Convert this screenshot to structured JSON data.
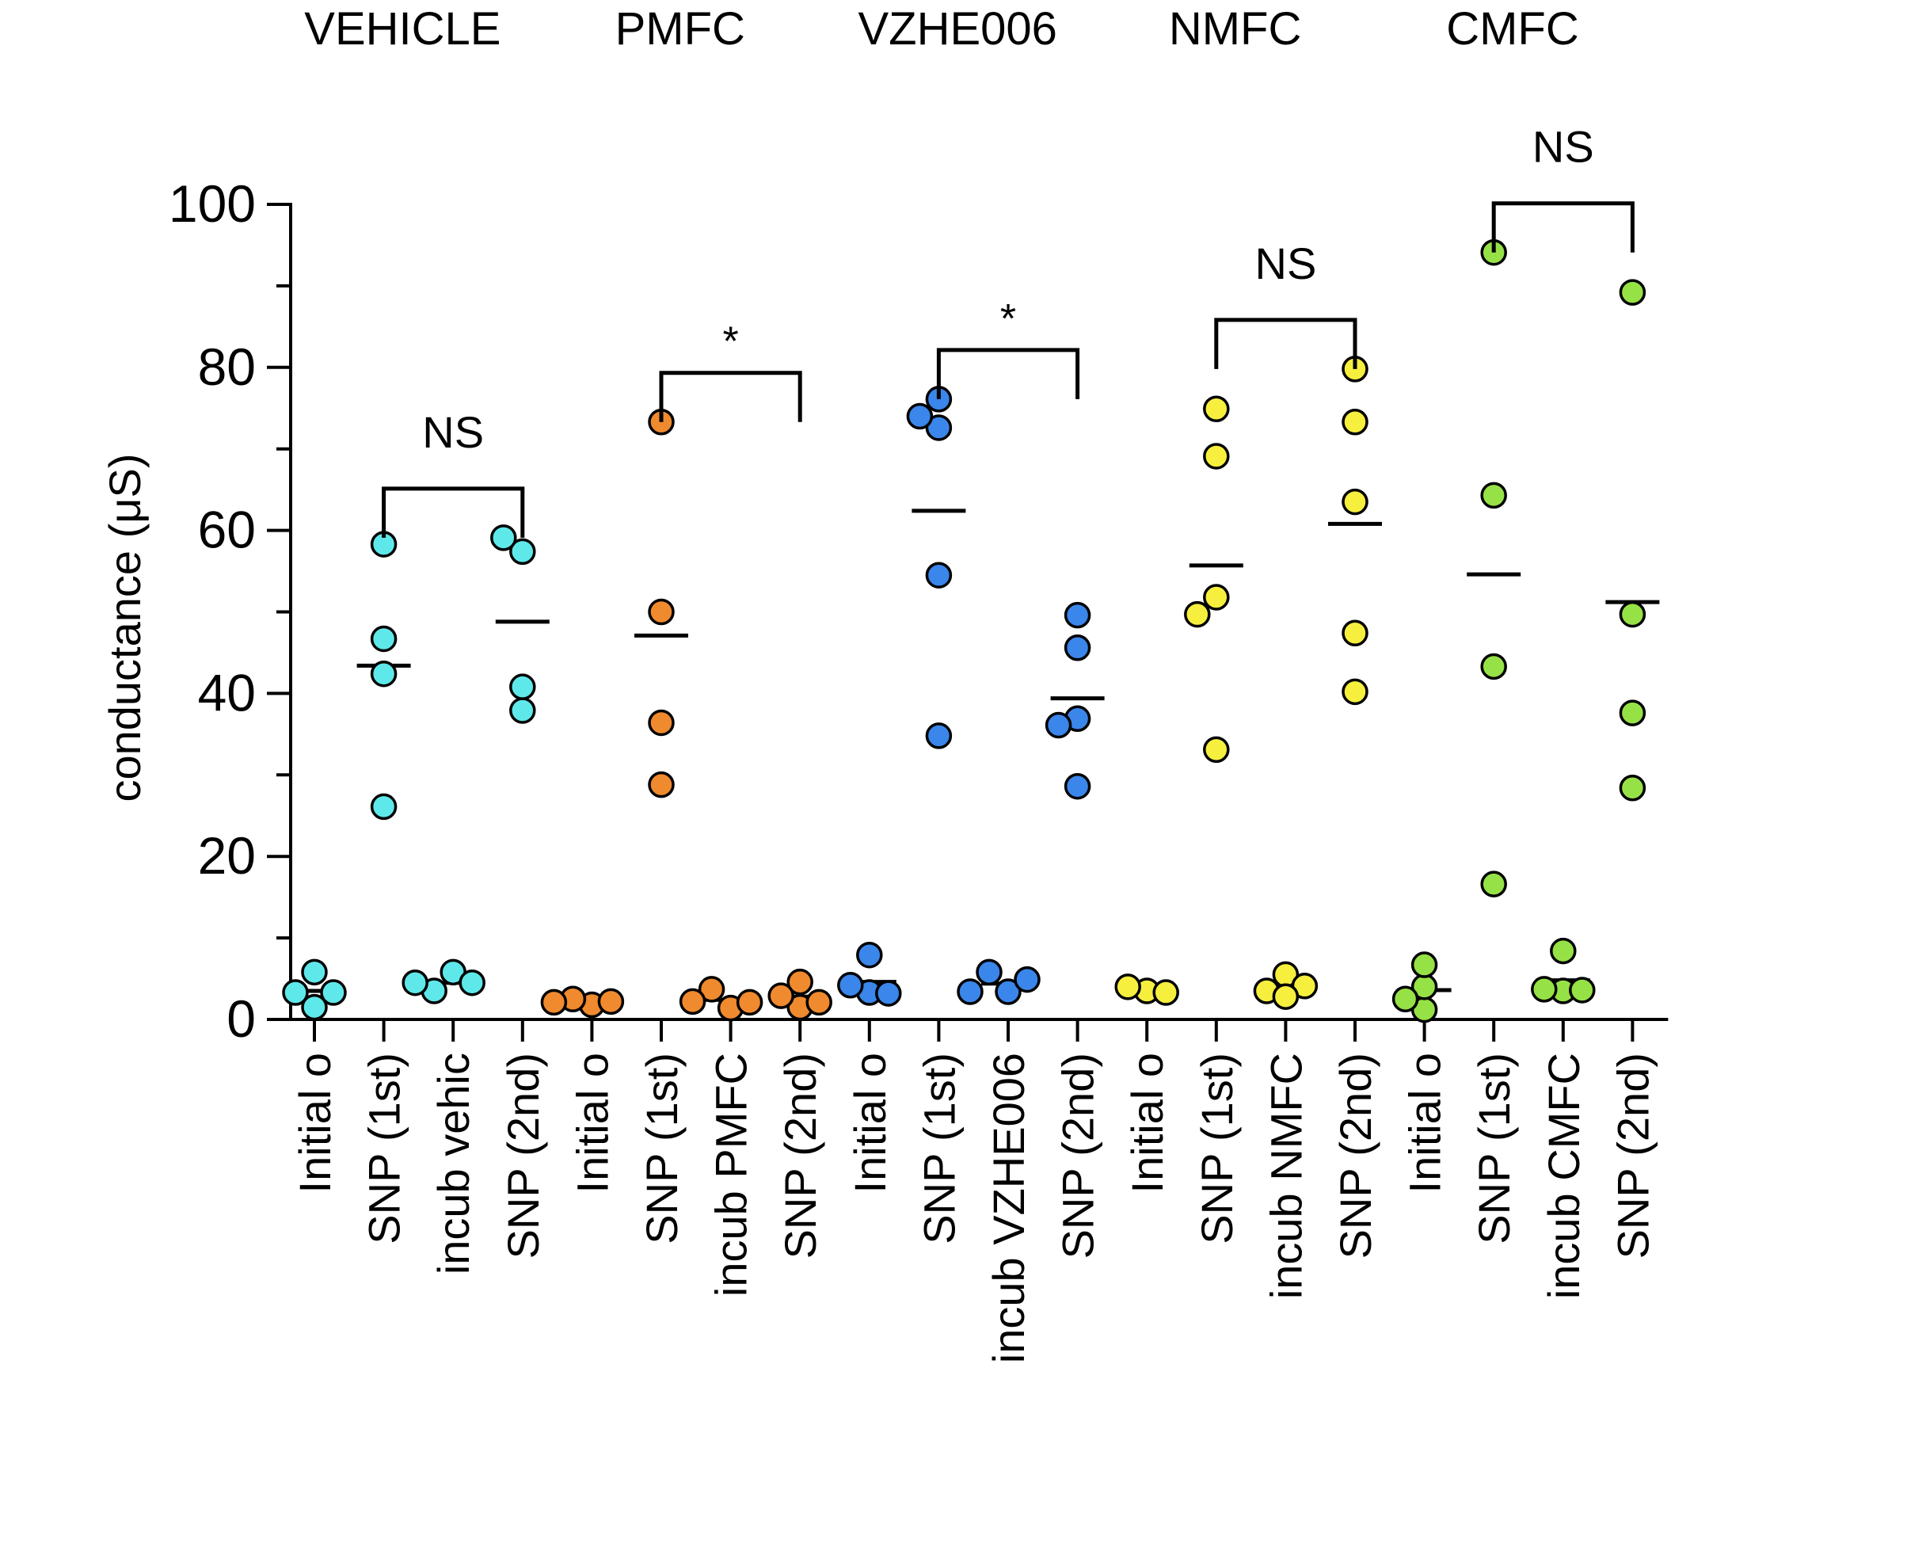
{
  "chart_data": {
    "type": "scatter",
    "subtype": "dot-plot with mean lines and significance brackets",
    "ylabel": "conductance (μS)",
    "ylim": [
      0,
      100
    ],
    "yticks": [
      0,
      20,
      40,
      60,
      80,
      100
    ],
    "grid": false,
    "groups": [
      {
        "name": "VEHICLE",
        "color": "#5fe8ea",
        "significance": "NS",
        "categories": [
          {
            "label": "Initial o",
            "values": [
              5.8,
              1.5,
              3.3,
              3.3
            ],
            "mean": 3.5
          },
          {
            "label": "SNP (1st)",
            "values": [
              58.3,
              46.7,
              42.4,
              26.1
            ],
            "mean": 43.4
          },
          {
            "label": "incub vehic",
            "values": [
              5.8,
              3.5,
              4.5,
              4.5
            ],
            "mean": 4.5
          },
          {
            "label": "SNP (2nd)",
            "values": [
              57.4,
              59.1,
              37.9,
              40.8
            ],
            "mean": 48.8
          }
        ]
      },
      {
        "name": "PMFC",
        "color": "#f08a2e",
        "significance": "*",
        "categories": [
          {
            "label": "Initial o",
            "values": [
              1.8,
              2.5,
              2.2,
              2.1
            ],
            "mean": 2.2
          },
          {
            "label": "SNP (1st)",
            "values": [
              73.3,
              50.0,
              36.4,
              28.8
            ],
            "mean": 47.1
          },
          {
            "label": "incub PMFC",
            "values": [
              1.4,
              3.7,
              2.1,
              2.2
            ],
            "mean": 2.4
          },
          {
            "label": "SNP (2nd)",
            "values": [
              1.5,
              4.6,
              2.9,
              2.1
            ],
            "mean": 2.8
          }
        ]
      },
      {
        "name": "VZHE006",
        "color": "#3a86ea",
        "significance": "*",
        "categories": [
          {
            "label": "Initial o",
            "values": [
              3.3,
              4.2,
              7.9,
              3.2
            ],
            "mean": 4.6
          },
          {
            "label": "SNP (1st)",
            "values": [
              76.1,
              72.6,
              74.0,
              54.5,
              34.8
            ],
            "mean": 62.4
          },
          {
            "label": "incub VZHE006",
            "values": [
              3.4,
              5.8,
              4.9,
              3.4
            ],
            "mean": 4.4
          },
          {
            "label": "SNP (2nd)",
            "values": [
              49.6,
              45.6,
              36.9,
              36.1,
              28.6
            ],
            "mean": 39.4
          }
        ]
      },
      {
        "name": "NMFC",
        "color": "#f6ef3e",
        "significance": "NS",
        "categories": [
          {
            "label": "Initial o",
            "values": [
              3.5,
              4.0,
              3.3
            ],
            "mean": 3.6
          },
          {
            "label": "SNP (1st)",
            "values": [
              74.9,
              69.1,
              51.8,
              49.7,
              33.1
            ],
            "mean": 55.7
          },
          {
            "label": "incub NMFC",
            "values": [
              5.5,
              3.5,
              4.1,
              2.8
            ],
            "mean": 4.0
          },
          {
            "label": "SNP (2nd)",
            "values": [
              79.8,
              73.3,
              63.5,
              47.4,
              40.2
            ],
            "mean": 60.8
          }
        ]
      },
      {
        "name": "CMFC",
        "color": "#96e246",
        "significance": "NS",
        "categories": [
          {
            "label": "Initial o",
            "values": [
              1.2,
              4.0,
              6.7,
              2.5
            ],
            "mean": 3.6
          },
          {
            "label": "SNP (1st)",
            "values": [
              94.1,
              64.3,
              43.3,
              16.6
            ],
            "mean": 54.6
          },
          {
            "label": "incub CMFC",
            "values": [
              8.4,
              3.5,
              3.7,
              3.6
            ],
            "mean": 4.8
          },
          {
            "label": "SNP (2nd)",
            "values": [
              89.2,
              49.7,
              37.6,
              28.4
            ],
            "mean": 51.2
          }
        ]
      }
    ]
  }
}
